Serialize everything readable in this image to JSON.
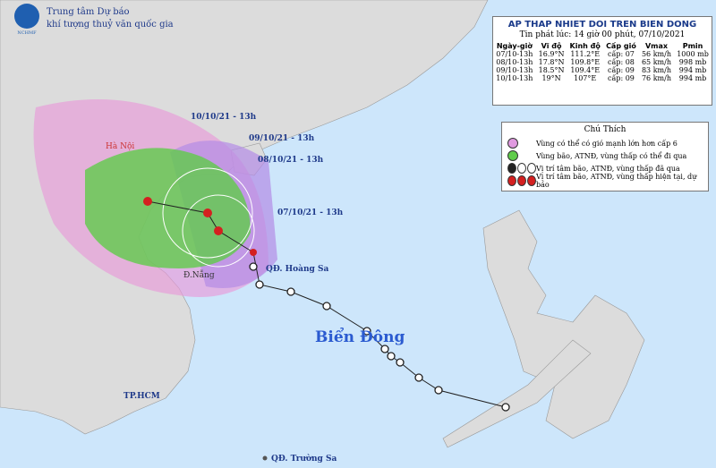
{
  "header": {
    "org_line1": "Trung tâm Dự báo",
    "org_line2": "khí tượng thuỷ văn quốc gia",
    "logo_text": "NCHMF"
  },
  "info_box": {
    "title": "AP THAP NHIET DOI TREN BIEN DONG",
    "subtitle": "Tin phát lúc: 14 giờ 00 phút, 07/10/2021",
    "columns": [
      "Ngày-giờ",
      "Vĩ độ",
      "Kinh độ",
      "Cấp gió",
      "Vmax",
      "Pmin"
    ],
    "rows": [
      [
        "07/10-13h",
        "16.9°N",
        "111.2°E",
        "cấp: 07",
        "56 km/h",
        "1000 mb"
      ],
      [
        "08/10-13h",
        "17.8°N",
        "109.8°E",
        "cấp: 08",
        "65 km/h",
        "998 mb"
      ],
      [
        "09/10-13h",
        "18.5°N",
        "109.4°E",
        "cấp: 09",
        "83 km/h",
        "994 mb"
      ],
      [
        "10/10-13h",
        "19°N",
        "107°E",
        "cấp: 09",
        "76 km/h",
        "994 mb"
      ]
    ]
  },
  "legend": {
    "title": "Chú Thích",
    "items": [
      "Vùng có thể có gió mạnh lớn hơn cấp 6",
      "Vùng bão, ATNĐ, vùng thấp có thể đi qua",
      "Vị trí tâm bão, ATNĐ, vùng thấp đã qua",
      "Vị trí tâm bão, ATNĐ, vùng thấp hiện tại, dự báo"
    ]
  },
  "map_labels": {
    "forecast_times": [
      "10/10/21 - 13h",
      "09/10/21 - 13h",
      "08/10/21 - 13h",
      "07/10/21 - 13h"
    ],
    "places": [
      "Hà Nội",
      "Đ.Nẵng",
      "QĐ. Hoàng Sa",
      "Biển Đông",
      "TP.HCM",
      "QĐ. Trường Sa"
    ]
  }
}
